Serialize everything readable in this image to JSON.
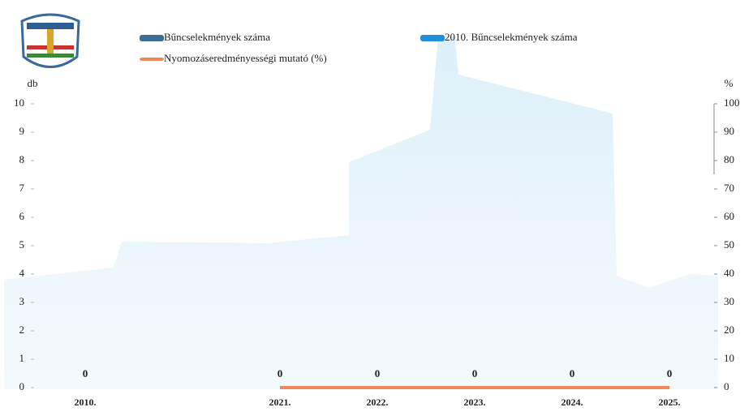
{
  "chart_data": {
    "type": "bar",
    "categories": [
      "2010.",
      null,
      "2021.",
      "2022.",
      "2023.",
      "2024.",
      "2025."
    ],
    "series": [
      {
        "name": "Bűncselekmények száma",
        "color": "#3b6e96",
        "values": [
          null,
          null,
          0,
          0,
          0,
          0,
          0
        ]
      },
      {
        "name": "2010. Bűncselekmények száma",
        "color": "#1e8fd8",
        "values": [
          0,
          null,
          null,
          null,
          null,
          null,
          null
        ]
      },
      {
        "name": "Nyomozáseredményességi mutató (%)",
        "color": "#f0875a",
        "type": "line",
        "axis": "y2",
        "values": [
          null,
          null,
          0,
          0,
          0,
          0,
          0
        ]
      }
    ],
    "y_label": "db",
    "y2_label": "%",
    "ylim": [
      0,
      10
    ],
    "yticks": [
      0,
      1,
      2,
      3,
      4,
      5,
      6,
      7,
      8,
      9,
      10
    ],
    "y2lim": [
      0,
      100
    ],
    "y2ticks": [
      0,
      10,
      20,
      30,
      40,
      50,
      60,
      70,
      80,
      90,
      100
    ],
    "legend": "top"
  }
}
